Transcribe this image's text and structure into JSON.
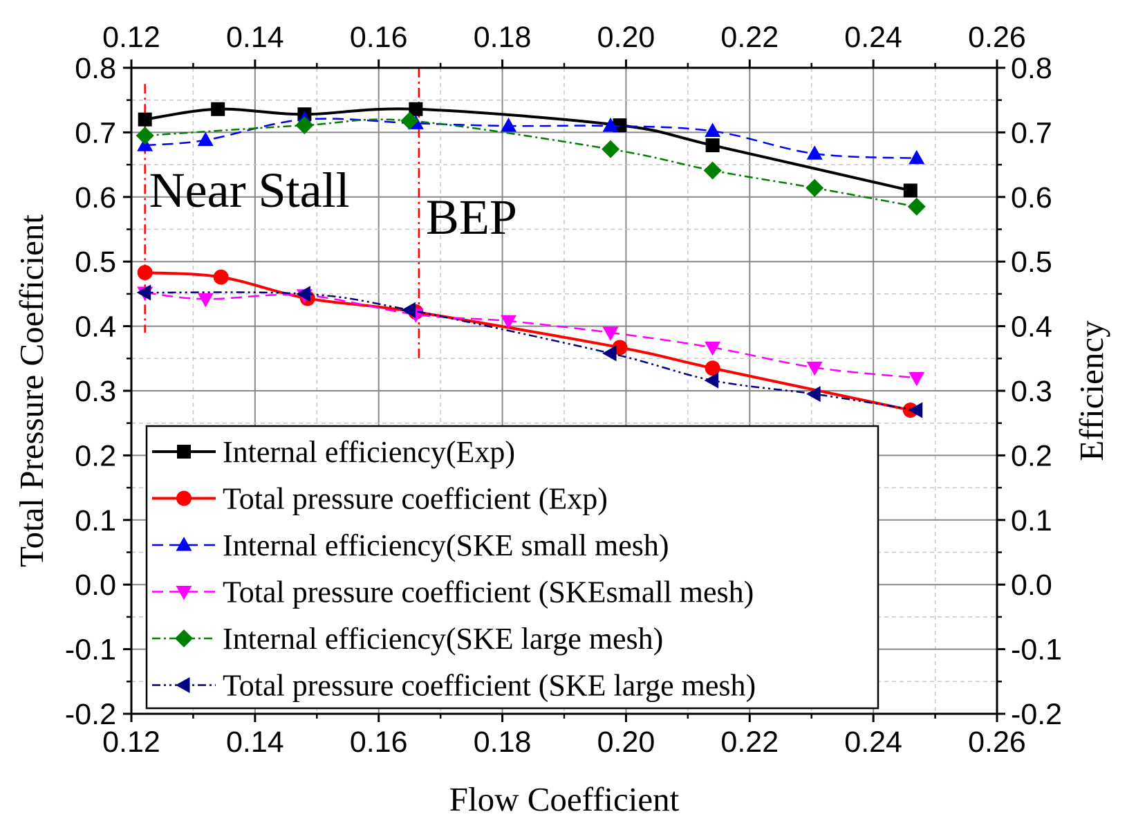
{
  "chart_data": {
    "type": "line",
    "xlabel": "Flow Coefficient",
    "ylabel": "Total Pressure Coefficient",
    "y2label": "Efficiency",
    "xlim": [
      0.12,
      0.26
    ],
    "ylim": [
      -0.2,
      0.8
    ],
    "x_ticks": [
      "0.12",
      "0.14",
      "0.16",
      "0.18",
      "0.20",
      "0.22",
      "0.24",
      "0.26"
    ],
    "y_ticks": [
      "-0.2",
      "-0.1",
      "0.0",
      "0.1",
      "0.2",
      "0.3",
      "0.4",
      "0.5",
      "0.6",
      "0.7",
      "0.8"
    ],
    "grid": true,
    "legend_position": "bottom-left",
    "annotations": [
      {
        "text": "Near Stall",
        "x": 0.1222
      },
      {
        "text": "BEP",
        "x": 0.1665
      }
    ],
    "series": [
      {
        "name": "Internal efficiency(Exp)",
        "color": "#000000",
        "marker": "square",
        "dash": "solid",
        "x": [
          0.1222,
          0.134,
          0.148,
          0.166,
          0.199,
          0.214,
          0.246
        ],
        "y": [
          0.72,
          0.736,
          0.728,
          0.736,
          0.711,
          0.68,
          0.61
        ]
      },
      {
        "name": "Total pressure coefficient (Exp)",
        "color": "#ff0000",
        "marker": "circle",
        "dash": "solid",
        "x": [
          0.1222,
          0.1345,
          0.1485,
          0.166,
          0.199,
          0.214,
          0.246
        ],
        "y": [
          0.483,
          0.476,
          0.443,
          0.422,
          0.367,
          0.335,
          0.27
        ]
      },
      {
        "name": "Internal efficiency(SKE small mesh)",
        "color": "#0000ff",
        "marker": "triangle-up",
        "dash": "dashed",
        "x": [
          0.1222,
          0.132,
          0.148,
          0.166,
          0.181,
          0.1975,
          0.214,
          0.2305,
          0.247
        ],
        "y": [
          0.68,
          0.688,
          0.72,
          0.714,
          0.71,
          0.71,
          0.702,
          0.667,
          0.66
        ]
      },
      {
        "name": "Total pressure coefficient (SKEsmall mesh)",
        "color": "#ff00ff",
        "marker": "triangle-down",
        "dash": "dashed",
        "x": [
          0.1222,
          0.132,
          0.148,
          0.166,
          0.181,
          0.1975,
          0.214,
          0.2305,
          0.247
        ],
        "y": [
          0.452,
          0.442,
          0.448,
          0.418,
          0.408,
          0.39,
          0.367,
          0.336,
          0.32
        ]
      },
      {
        "name": "Internal efficiency(SKE large mesh)",
        "color": "#008000",
        "marker": "diamond",
        "dash": "dashdot",
        "x": [
          0.1222,
          0.148,
          0.165,
          0.1975,
          0.214,
          0.2305,
          0.247
        ],
        "y": [
          0.695,
          0.711,
          0.718,
          0.674,
          0.641,
          0.614,
          0.585
        ]
      },
      {
        "name": "Total pressure coefficient (SKE large mesh)",
        "color": "#000080",
        "marker": "triangle-left",
        "dash": "dashdotdot",
        "x": [
          0.1222,
          0.148,
          0.165,
          0.1975,
          0.214,
          0.2305,
          0.247
        ],
        "y": [
          0.452,
          0.45,
          0.425,
          0.358,
          0.316,
          0.295,
          0.27
        ]
      }
    ]
  }
}
